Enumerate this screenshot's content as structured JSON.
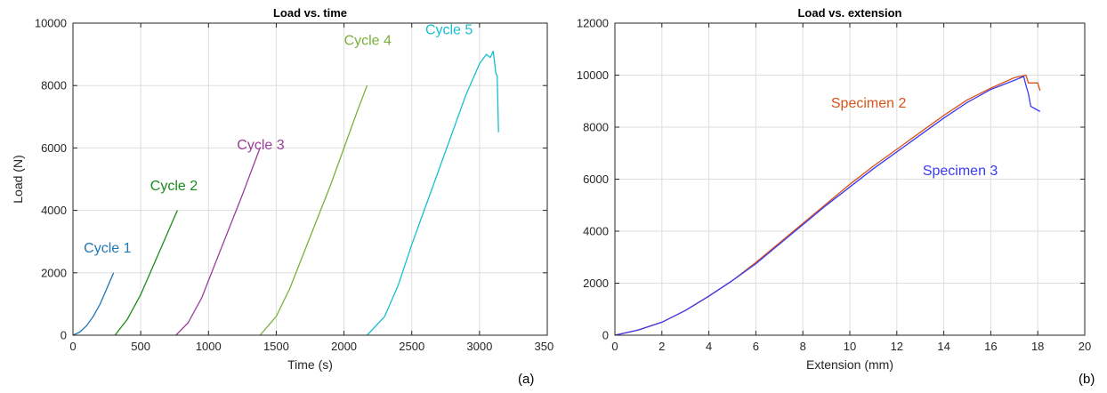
{
  "chart_data": [
    {
      "panel_label": "(a)",
      "type": "line",
      "title": "Load vs. time",
      "xlabel": "Time (s)",
      "ylabel": "Load (N)",
      "xlim": [
        0,
        3500
      ],
      "ylim": [
        0,
        10000
      ],
      "xticks": [
        0,
        500,
        1000,
        1500,
        2000,
        2500,
        3000,
        3500
      ],
      "yticks": [
        0,
        2000,
        4000,
        6000,
        8000,
        10000
      ],
      "grid": true,
      "series": [
        {
          "name": "Cycle 1",
          "color": "#1f77b4",
          "x": [
            0,
            50,
            100,
            150,
            200,
            250,
            300
          ],
          "y": [
            0,
            100,
            300,
            600,
            1000,
            1500,
            2000
          ]
        },
        {
          "name": "Cycle 2",
          "color": "#1a8c1a",
          "x": [
            310,
            400,
            500,
            600,
            700,
            770
          ],
          "y": [
            0,
            500,
            1300,
            2300,
            3300,
            4000
          ]
        },
        {
          "name": "Cycle 3",
          "color": "#9b3d9b",
          "x": [
            760,
            850,
            950,
            1050,
            1150,
            1250,
            1380
          ],
          "y": [
            0,
            400,
            1200,
            2300,
            3400,
            4500,
            6000
          ]
        },
        {
          "name": "Cycle 4",
          "color": "#7ab03a",
          "x": [
            1380,
            1500,
            1600,
            1700,
            1800,
            1900,
            2000,
            2100,
            2170
          ],
          "y": [
            0,
            600,
            1500,
            2600,
            3700,
            4800,
            6000,
            7200,
            8000
          ]
        },
        {
          "name": "Cycle 5",
          "color": "#17becf",
          "x": [
            2170,
            2300,
            2400,
            2500,
            2600,
            2700,
            2800,
            2900,
            3000,
            3050,
            3080,
            3100,
            3110,
            3120,
            3130,
            3135,
            3140
          ],
          "y": [
            0,
            600,
            1600,
            2900,
            4100,
            5300,
            6500,
            7700,
            8700,
            9000,
            8900,
            9100,
            8800,
            8400,
            8300,
            7500,
            6500
          ]
        }
      ],
      "annotations": [
        {
          "text": "Cycle 1",
          "x": 80,
          "y": 2650,
          "color": "#1f77b4"
        },
        {
          "text": "Cycle 2",
          "x": 570,
          "y": 4650,
          "color": "#1a8c1a"
        },
        {
          "text": "Cycle 3",
          "x": 1210,
          "y": 5950,
          "color": "#9b3d9b"
        },
        {
          "text": "Cycle 4",
          "x": 2000,
          "y": 9300,
          "color": "#7ab03a"
        },
        {
          "text": "Cycle 5",
          "x": 2600,
          "y": 9650,
          "color": "#17becf"
        }
      ]
    },
    {
      "panel_label": "(b)",
      "type": "line",
      "title": "Load vs. extension",
      "xlabel": "Extension (mm)",
      "ylabel": "",
      "xlim": [
        0,
        20
      ],
      "ylim": [
        0,
        12000
      ],
      "xticks": [
        0,
        2,
        4,
        6,
        8,
        10,
        12,
        14,
        16,
        18,
        20
      ],
      "yticks": [
        0,
        2000,
        4000,
        6000,
        8000,
        10000,
        12000
      ],
      "grid": true,
      "series": [
        {
          "name": "Specimen 2",
          "color": "#d95319",
          "x": [
            0,
            1,
            2,
            3,
            4,
            5,
            6,
            7,
            8,
            9,
            10,
            11,
            12,
            13,
            14,
            15,
            16,
            17,
            17.5,
            17.6,
            18.0,
            18.1
          ],
          "y": [
            0,
            200,
            500,
            950,
            1500,
            2100,
            2800,
            3550,
            4300,
            5050,
            5800,
            6500,
            7150,
            7800,
            8450,
            9050,
            9500,
            9900,
            10000,
            9700,
            9700,
            9400
          ]
        },
        {
          "name": "Specimen 3",
          "color": "#3a3af0",
          "x": [
            0,
            1,
            2,
            3,
            4,
            5,
            6,
            7,
            8,
            9,
            10,
            11,
            12,
            13,
            14,
            15,
            16,
            17,
            17.4,
            17.5,
            17.6,
            17.7,
            17.9,
            18.1
          ],
          "y": [
            0,
            200,
            500,
            950,
            1500,
            2100,
            2750,
            3500,
            4250,
            5000,
            5700,
            6400,
            7050,
            7700,
            8350,
            8950,
            9450,
            9800,
            9950,
            9600,
            9300,
            8800,
            8700,
            8600
          ]
        }
      ],
      "annotations": [
        {
          "text": "Specimen 2",
          "x": 9.2,
          "y": 8750,
          "color": "#d95319"
        },
        {
          "text": "Specimen 3",
          "x": 13.1,
          "y": 6150,
          "color": "#3a3af0"
        }
      ]
    }
  ]
}
